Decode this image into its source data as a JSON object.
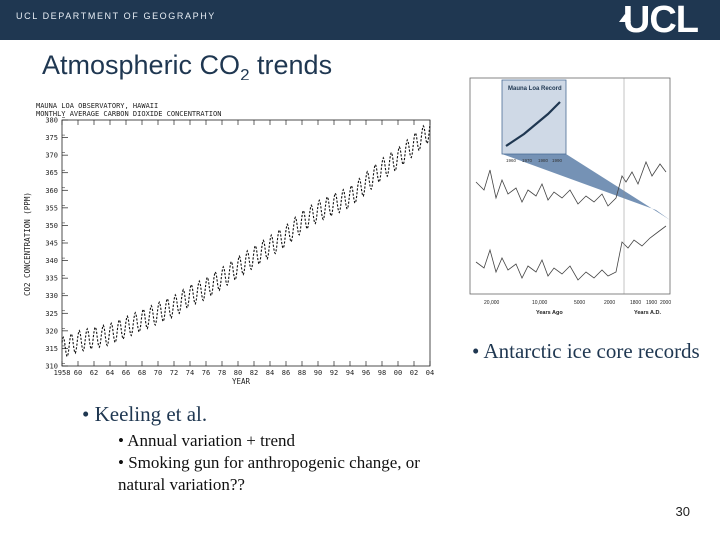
{
  "header": {
    "department": "UCL DEPARTMENT OF GEOGRAPHY",
    "logo": "UCL",
    "logo_icon": "ucl-dome-icon",
    "bg_color": "#1f3751"
  },
  "slide": {
    "title": "Atmospheric CO",
    "title_sub": "2",
    "title_suffix": " trends",
    "page_number": "30"
  },
  "keeling_figure": {
    "header_line1": "MAUNA LOA OBSERVATORY, HAWAII",
    "header_line2": "MONTHLY AVERAGE CARBON DIOXIDE CONCENTRATION",
    "ylabel": "CO2 CONCENTRATION (PPM)",
    "xlabel": "YEAR"
  },
  "chart_data": {
    "type": "line",
    "xlabel": "YEAR",
    "ylabel": "CO2 CONCENTRATION (PPM)",
    "xlim": [
      1958,
      2004
    ],
    "ylim": [
      310,
      380
    ],
    "x_ticks": [
      "1958",
      "60",
      "62",
      "64",
      "66",
      "68",
      "70",
      "72",
      "74",
      "76",
      "78",
      "80",
      "82",
      "84",
      "86",
      "88",
      "90",
      "92",
      "94",
      "96",
      "98",
      "00",
      "02",
      "04"
    ],
    "y_ticks": [
      310,
      315,
      320,
      325,
      330,
      335,
      340,
      345,
      350,
      355,
      360,
      365,
      370,
      375,
      380
    ],
    "x": [
      1958,
      1960,
      1962,
      1964,
      1966,
      1968,
      1970,
      1972,
      1974,
      1976,
      1978,
      1980,
      1982,
      1984,
      1986,
      1988,
      1990,
      1992,
      1994,
      1996,
      1998,
      2000,
      2002,
      2004
    ],
    "series": [
      {
        "values": [
          315,
          317,
          318,
          319,
          321,
          323,
          325,
          327,
          330,
          332,
          335,
          338,
          341,
          344,
          347,
          351,
          354,
          356,
          358,
          362,
          366,
          369,
          373,
          377
        ]
      }
    ],
    "seasonal_amplitude_ppm": 6
  },
  "ice_figure": {
    "inset_title": "Mauna Loa Record",
    "xlabel_left": "Years Ago",
    "xlabel_right": "Years A.D.",
    "x_ticks_left": [
      "20,000",
      "10,000",
      "5000",
      "2000"
    ],
    "x_ticks_right": [
      "1800",
      "1900",
      "2000"
    ],
    "inset_x_ticks": [
      "1960",
      "1970",
      "1980",
      "1990"
    ]
  },
  "bullets": {
    "ice": "• Antarctic ice core records",
    "keeling": "• Keeling et al.",
    "keeling_sub1": "• Annual variation + trend",
    "keeling_sub2": "• Smoking gun for anthropogenic change, or natural variation??"
  }
}
